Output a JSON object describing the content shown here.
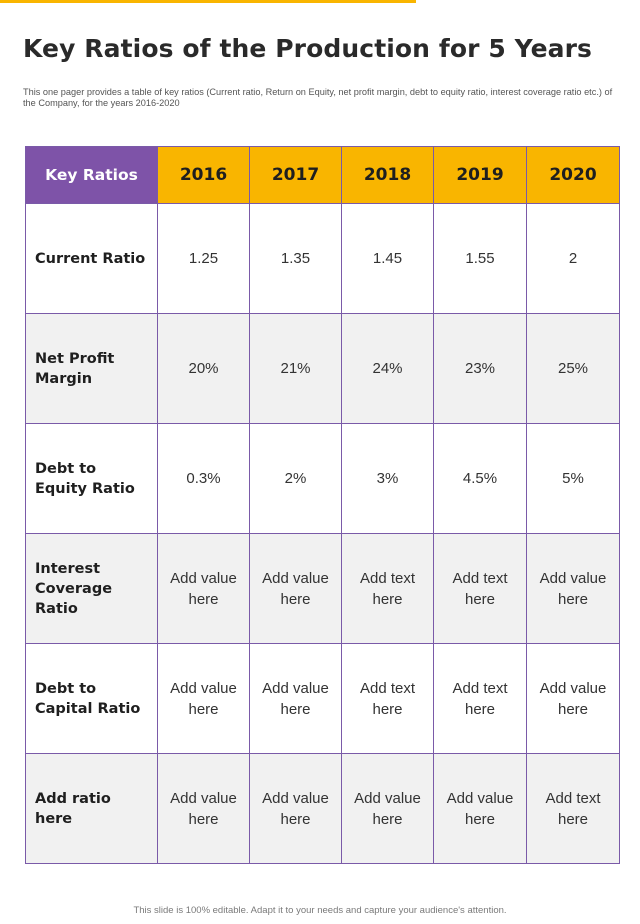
{
  "page": {
    "title": "Key Ratios of the Production for 5 Years",
    "subtitle": "This one pager provides a table of key ratios (Current ratio, Return on Equity, net profit margin, debt to equity ratio, interest coverage ratio etc.) of the Company, for the years 2016-2020",
    "footer": "This slide is 100% editable. Adapt it to your needs and capture your audience's attention."
  },
  "colors": {
    "accent_yellow": "#f9b500",
    "accent_purple": "#7e53a8",
    "row_alt": "#f1f1f1"
  },
  "table": {
    "header": {
      "label": "Key Ratios",
      "years": [
        "2016",
        "2017",
        "2018",
        "2019",
        "2020"
      ]
    },
    "rows": [
      {
        "label": "Current Ratio",
        "values": [
          "1.25",
          "1.35",
          "1.45",
          "1.55",
          "2"
        ]
      },
      {
        "label": "Net Profit Margin",
        "values": [
          "20%",
          "21%",
          "24%",
          "23%",
          "25%"
        ]
      },
      {
        "label": "Debt to Equity Ratio",
        "values": [
          "0.3%",
          "2%",
          "3%",
          "4.5%",
          "5%"
        ]
      },
      {
        "label": "Interest Coverage Ratio",
        "values": [
          "Add value here",
          "Add value here",
          "Add text here",
          "Add text here",
          "Add value here"
        ]
      },
      {
        "label": "Debt to Capital Ratio",
        "values": [
          "Add value here",
          "Add value here",
          "Add text here",
          "Add text here",
          "Add value here"
        ]
      },
      {
        "label": "Add ratio here",
        "values": [
          "Add value here",
          "Add value here",
          "Add value here",
          "Add value here",
          "Add text here"
        ]
      }
    ]
  }
}
